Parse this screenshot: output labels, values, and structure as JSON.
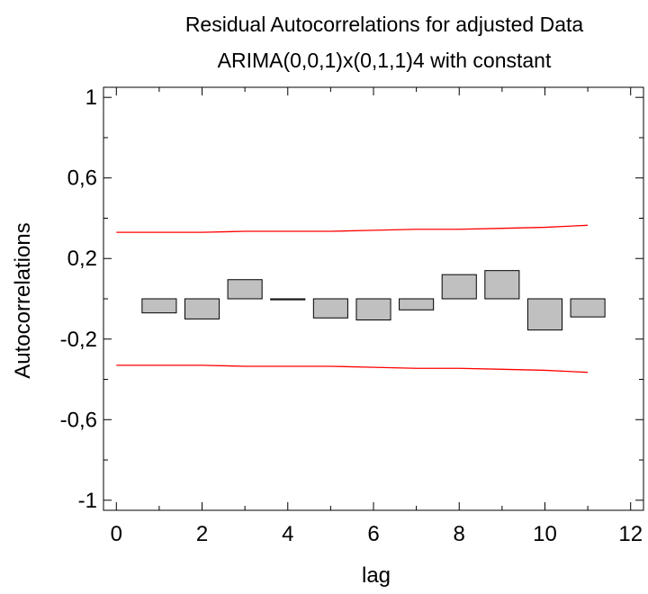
{
  "chart_data": {
    "type": "bar",
    "title": "Residual Autocorrelations for adjusted Data",
    "subtitle": "ARIMA(0,0,1)x(0,1,1)4 with constant",
    "xlabel": "lag",
    "ylabel": "Autocorrelations",
    "xlim": [
      -0.3,
      12.3
    ],
    "ylim": [
      -1.05,
      1.05
    ],
    "xticks": [
      0,
      2,
      4,
      6,
      8,
      10,
      12
    ],
    "xtick_labels": [
      "0",
      "2",
      "4",
      "6",
      "8",
      "10",
      "12"
    ],
    "yticks": [
      -1,
      -0.6,
      -0.2,
      0.2,
      0.6,
      1
    ],
    "ytick_labels": [
      "-1",
      "-0,6",
      "-0,2",
      "0,2",
      "0,6",
      "1"
    ],
    "bar_width": 0.8,
    "lags": [
      1,
      2,
      3,
      4,
      5,
      6,
      7,
      8,
      9,
      10,
      11
    ],
    "values": [
      -0.07,
      -0.1,
      0.095,
      -0.005,
      -0.095,
      -0.105,
      -0.055,
      0.12,
      0.14,
      -0.155,
      -0.09
    ],
    "limit_lags": [
      0,
      1,
      2,
      3,
      4,
      5,
      6,
      7,
      8,
      9,
      10,
      11
    ],
    "upper_limit": [
      0.33,
      0.33,
      0.33,
      0.335,
      0.335,
      0.335,
      0.34,
      0.345,
      0.345,
      0.35,
      0.355,
      0.365
    ],
    "lower_limit": [
      -0.33,
      -0.33,
      -0.33,
      -0.335,
      -0.335,
      -0.335,
      -0.34,
      -0.345,
      -0.345,
      -0.35,
      -0.355,
      -0.365
    ],
    "grid": false,
    "legend": "none",
    "colors": {
      "bar_fill": "#c0c0c0",
      "bar_stroke": "#000000",
      "limit_line": "#ff0000"
    }
  }
}
